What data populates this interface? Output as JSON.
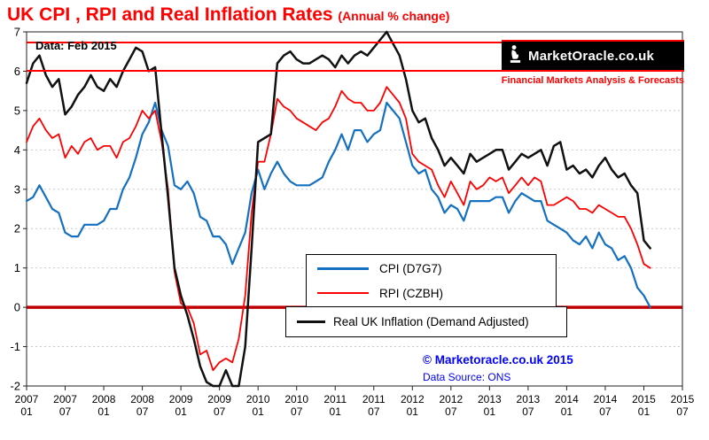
{
  "title": {
    "main": "UK CPI , RPI and Real Inflation Rates",
    "suffix": "(Annual % change)"
  },
  "annotations": {
    "data_note": "Data:  Feb 2015",
    "copyright": "© Marketoracle.co.uk 2015",
    "source": "Data Source: ONS"
  },
  "logo": {
    "name": "MarketOracle.co.uk",
    "tagline": "Financial Markets Analysis & Forecasts"
  },
  "legend": [
    {
      "label": "CPI (D7G7)",
      "color": "#1470C0"
    },
    {
      "label": "RPI (CZBH)",
      "color": "#FF0000"
    },
    {
      "label": "Real UK Inflation (Demand Adjusted)",
      "color": "#111111"
    }
  ],
  "chart_data": {
    "type": "line",
    "title": "UK CPI , RPI and Real Inflation Rates (Annual % change)",
    "x_unit": "month",
    "x_start": "2007-01",
    "x_end": "2015-02",
    "x_axis_end": "2015-07",
    "x_tick_labels": [
      [
        "2007",
        "01"
      ],
      [
        "2007",
        "07"
      ],
      [
        "2008",
        "01"
      ],
      [
        "2008",
        "07"
      ],
      [
        "2009",
        "01"
      ],
      [
        "2009",
        "07"
      ],
      [
        "2010",
        "01"
      ],
      [
        "2010",
        "07"
      ],
      [
        "2011",
        "01"
      ],
      [
        "2011",
        "07"
      ],
      [
        "2012",
        "01"
      ],
      [
        "2012",
        "07"
      ],
      [
        "2013",
        "01"
      ],
      [
        "2013",
        "07"
      ],
      [
        "2014",
        "01"
      ],
      [
        "2014",
        "07"
      ],
      [
        "2015",
        "01"
      ],
      [
        "2015",
        "07"
      ]
    ],
    "ylim": [
      -2,
      7
    ],
    "yticks": [
      7,
      6,
      5,
      4,
      3,
      2,
      1,
      0,
      -1,
      -2
    ],
    "grid": "horizontal-dashed",
    "legend_position": "center",
    "zero_line_color": "#C00000",
    "series": [
      {
        "name": "CPI (D7G7)",
        "color": "#1470C0",
        "values": [
          2.7,
          2.8,
          3.1,
          2.8,
          2.5,
          2.4,
          1.9,
          1.8,
          1.8,
          2.1,
          2.1,
          2.1,
          2.2,
          2.5,
          2.5,
          3.0,
          3.3,
          3.8,
          4.4,
          4.7,
          5.2,
          4.5,
          4.1,
          3.1,
          3.0,
          3.2,
          2.9,
          2.3,
          2.2,
          1.8,
          1.8,
          1.6,
          1.1,
          1.5,
          1.9,
          2.9,
          3.5,
          3.0,
          3.4,
          3.7,
          3.4,
          3.2,
          3.1,
          3.1,
          3.1,
          3.2,
          3.3,
          3.7,
          4.0,
          4.4,
          4.0,
          4.5,
          4.5,
          4.2,
          4.4,
          4.5,
          5.2,
          5.0,
          4.8,
          4.2,
          3.6,
          3.4,
          3.5,
          3.0,
          2.8,
          2.4,
          2.6,
          2.5,
          2.2,
          2.7,
          2.7,
          2.7,
          2.7,
          2.8,
          2.8,
          2.4,
          2.7,
          2.9,
          2.8,
          2.7,
          2.7,
          2.2,
          2.1,
          2.0,
          1.9,
          1.7,
          1.6,
          1.8,
          1.5,
          1.9,
          1.6,
          1.5,
          1.2,
          1.3,
          1.0,
          0.5,
          0.3,
          0.0
        ]
      },
      {
        "name": "RPI (CZBH)",
        "color": "#FF0000",
        "values": [
          4.2,
          4.6,
          4.8,
          4.5,
          4.3,
          4.4,
          3.8,
          4.1,
          3.9,
          4.2,
          4.3,
          4.0,
          4.1,
          4.1,
          3.8,
          4.2,
          4.3,
          4.6,
          5.0,
          4.8,
          5.0,
          4.2,
          3.0,
          0.9,
          0.1,
          0.0,
          -0.4,
          -1.2,
          -1.1,
          -1.6,
          -1.4,
          -1.3,
          -1.4,
          -0.8,
          0.3,
          2.4,
          3.7,
          3.7,
          4.4,
          5.3,
          5.1,
          5.0,
          4.8,
          4.7,
          4.6,
          4.5,
          4.7,
          4.8,
          5.1,
          5.5,
          5.3,
          5.2,
          5.2,
          5.0,
          5.0,
          5.2,
          5.6,
          5.4,
          5.2,
          4.8,
          3.9,
          3.7,
          3.6,
          3.5,
          3.1,
          2.8,
          3.2,
          2.9,
          2.6,
          3.2,
          3.0,
          3.1,
          3.3,
          3.2,
          3.3,
          2.9,
          3.1,
          3.3,
          3.1,
          3.3,
          3.2,
          2.6,
          2.6,
          2.7,
          2.8,
          2.7,
          2.5,
          2.5,
          2.4,
          2.6,
          2.5,
          2.4,
          2.3,
          2.3,
          2.0,
          1.6,
          1.1,
          1.0
        ]
      },
      {
        "name": "Real UK Inflation (Demand Adjusted)",
        "color": "#111111",
        "values": [
          5.7,
          6.2,
          6.4,
          5.9,
          5.6,
          5.8,
          4.9,
          5.1,
          5.4,
          5.6,
          5.9,
          5.6,
          5.5,
          5.8,
          5.6,
          6.0,
          6.3,
          6.6,
          6.5,
          6.0,
          6.1,
          4.4,
          2.8,
          1.0,
          0.3,
          -0.2,
          -0.8,
          -1.5,
          -1.9,
          -2.1,
          -2.3,
          -1.6,
          -2.1,
          -2.2,
          -1.0,
          1.5,
          4.2,
          4.3,
          4.4,
          6.2,
          6.4,
          6.5,
          6.3,
          6.2,
          6.2,
          6.3,
          6.4,
          6.3,
          6.1,
          6.4,
          6.2,
          6.4,
          6.5,
          6.4,
          6.6,
          6.8,
          7.0,
          6.7,
          6.4,
          5.8,
          5.0,
          4.7,
          4.8,
          4.3,
          4.0,
          3.6,
          3.8,
          3.6,
          3.4,
          3.9,
          3.7,
          3.8,
          3.9,
          4.0,
          4.0,
          3.5,
          3.7,
          3.9,
          3.8,
          3.9,
          4.0,
          3.6,
          4.1,
          4.2,
          3.5,
          3.6,
          3.4,
          3.5,
          3.3,
          3.6,
          3.8,
          3.5,
          3.3,
          3.4,
          3.1,
          2.9,
          1.7,
          1.5
        ]
      }
    ]
  }
}
